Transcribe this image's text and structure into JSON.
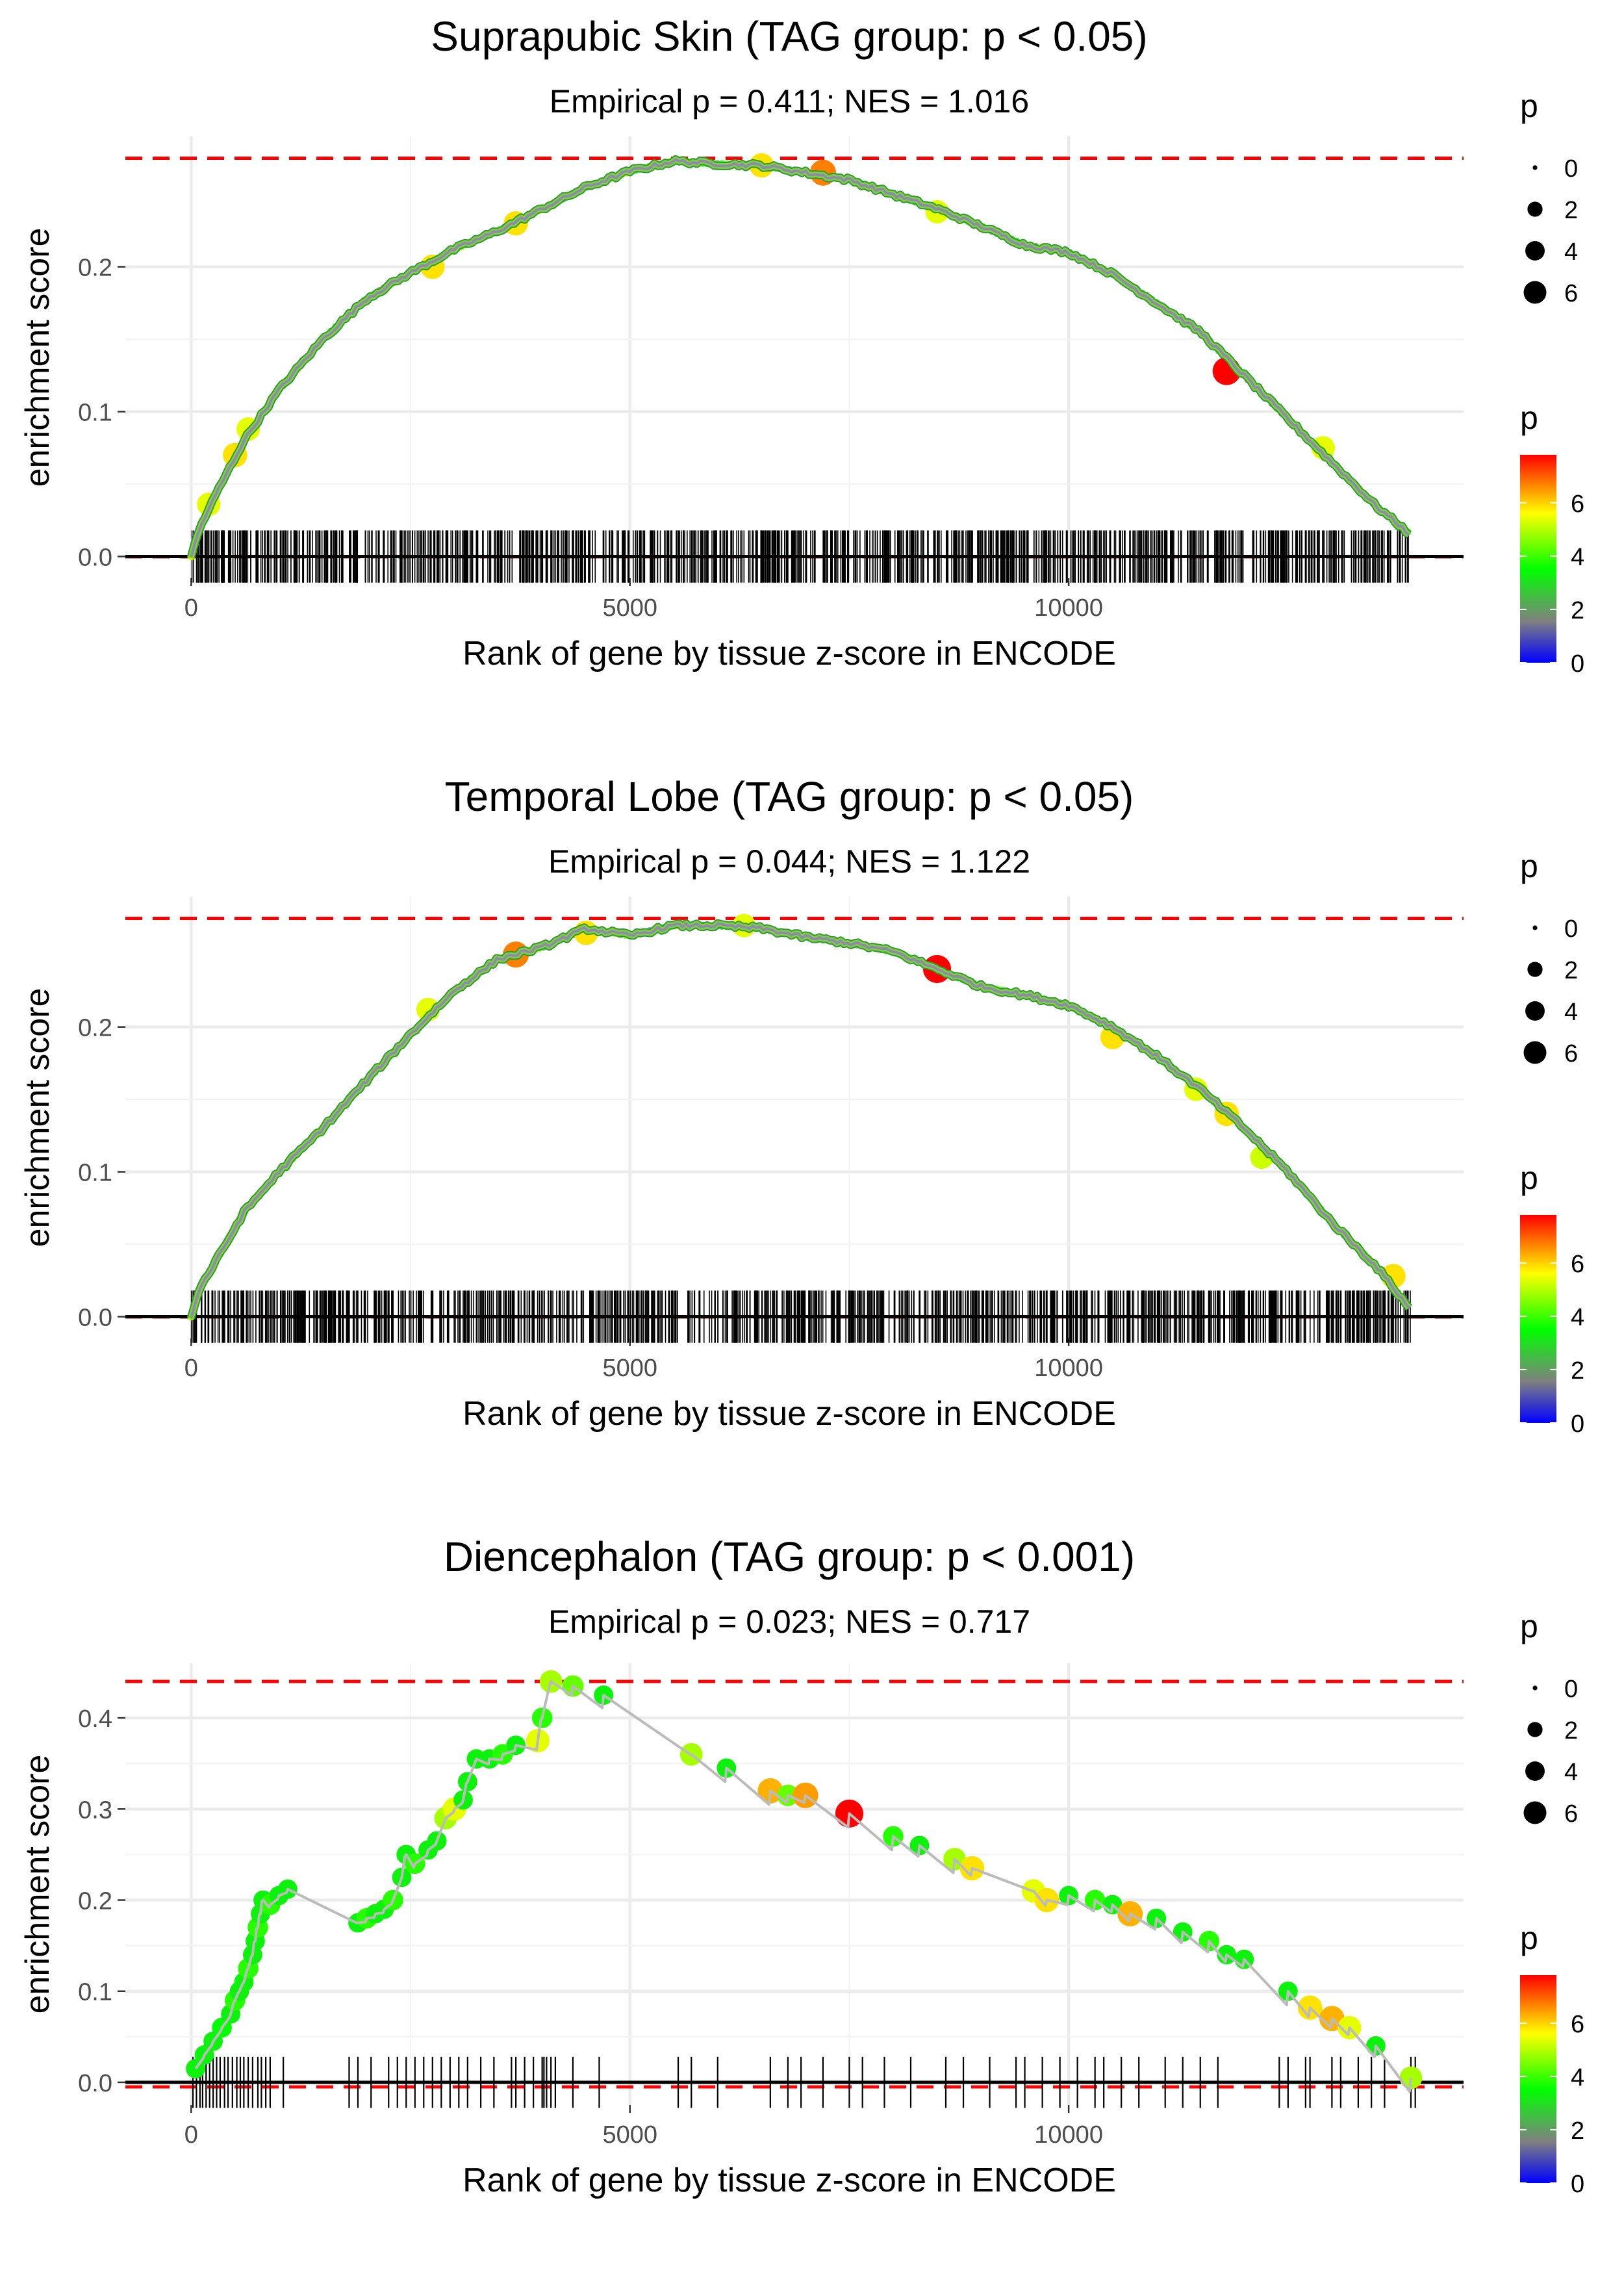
{
  "colorbar_gradient": [
    "#0000ff",
    "#808080",
    "#00ff00",
    "#ffff00",
    "#ff0000"
  ],
  "threshold_color": "#ff0000",
  "path_color": "#bbbbbb",
  "panels": [
    {
      "title": "Suprapubic Skin (TAG group: p < 0.05)",
      "subtitle": "Empirical p = 0.411; NES = 1.016",
      "xlabel": "Rank of gene by tissue z-score in ENCODE",
      "ylabel": "enrichment score",
      "legend_size_title": "p",
      "legend_color_title": "p"
    },
    {
      "title": "Temporal Lobe (TAG group: p < 0.05)",
      "subtitle": "Empirical p = 0.044; NES = 1.122",
      "xlabel": "Rank of gene by tissue z-score in ENCODE",
      "ylabel": "enrichment score",
      "legend_size_title": "p",
      "legend_color_title": "p"
    },
    {
      "title": "Diencephalon (TAG group: p < 0.001)",
      "subtitle": "Empirical p = 0.023; NES = 0.717",
      "xlabel": "Rank of gene by tissue z-score in ENCODE",
      "ylabel": "enrichment score",
      "legend_size_title": "p",
      "legend_color_title": "p"
    }
  ],
  "chart_data": [
    {
      "type": "line",
      "title": "Suprapubic Skin (TAG group: p < 0.05)",
      "subtitle": "Empirical p = 0.411; NES = 1.016",
      "xlabel": "Rank of gene by tissue z-score in ENCODE",
      "ylabel": "enrichment score",
      "xlim": [
        -750,
        14500
      ],
      "ylim": [
        -0.015,
        0.29
      ],
      "xticks": [
        0,
        5000,
        10000
      ],
      "yticks": [
        0.0,
        0.1,
        0.2
      ],
      "ytick_labels": [
        "0.0",
        "0.1",
        "0.2"
      ],
      "xtick_labels": [
        "0",
        "5000",
        "10000"
      ],
      "max_es": 0.275,
      "min_es": 0.0,
      "rug_height": 0.018,
      "gene_count": 1000,
      "rug_range": [
        0,
        13900
      ],
      "curve": [
        [
          0,
          0
        ],
        [
          100,
          0.02
        ],
        [
          300,
          0.045
        ],
        [
          600,
          0.08
        ],
        [
          1000,
          0.115
        ],
        [
          1500,
          0.15
        ],
        [
          2000,
          0.178
        ],
        [
          2500,
          0.196
        ],
        [
          3000,
          0.212
        ],
        [
          3500,
          0.225
        ],
        [
          4000,
          0.24
        ],
        [
          4500,
          0.255
        ],
        [
          5000,
          0.266
        ],
        [
          5500,
          0.273
        ],
        [
          6000,
          0.271
        ],
        [
          6500,
          0.27
        ],
        [
          7000,
          0.265
        ],
        [
          7500,
          0.26
        ],
        [
          8000,
          0.25
        ],
        [
          8500,
          0.24
        ],
        [
          9000,
          0.228
        ],
        [
          9500,
          0.215
        ],
        [
          10000,
          0.21
        ],
        [
          10500,
          0.195
        ],
        [
          11000,
          0.175
        ],
        [
          11500,
          0.155
        ],
        [
          12000,
          0.125
        ],
        [
          12500,
          0.095
        ],
        [
          13000,
          0.065
        ],
        [
          13500,
          0.035
        ],
        [
          13900,
          0.015
        ]
      ],
      "highlights": [
        {
          "x": 200,
          "y": 0.036,
          "p": 5.0
        },
        {
          "x": 500,
          "y": 0.07,
          "p": 5.5
        },
        {
          "x": 650,
          "y": 0.088,
          "p": 5.0
        },
        {
          "x": 2750,
          "y": 0.2,
          "p": 5.5
        },
        {
          "x": 3700,
          "y": 0.23,
          "p": 5.5
        },
        {
          "x": 6500,
          "y": 0.27,
          "p": 5.5
        },
        {
          "x": 7200,
          "y": 0.265,
          "p": 6.5
        },
        {
          "x": 8500,
          "y": 0.238,
          "p": 5.0
        },
        {
          "x": 11800,
          "y": 0.128,
          "p": 7.8
        },
        {
          "x": 12900,
          "y": 0.075,
          "p": 5.0
        }
      ],
      "p_legend": {
        "size_breaks": [
          0,
          2,
          4,
          6
        ],
        "color_breaks": [
          0,
          2,
          4,
          6
        ],
        "color_range": [
          0,
          7.8
        ]
      }
    },
    {
      "type": "line",
      "title": "Temporal Lobe (TAG group: p < 0.05)",
      "subtitle": "Empirical p = 0.044; NES = 1.122",
      "xlabel": "Rank of gene by tissue z-score in ENCODE",
      "ylabel": "enrichment score",
      "xlim": [
        -750,
        14500
      ],
      "ylim": [
        -0.015,
        0.29
      ],
      "xticks": [
        0,
        5000,
        10000
      ],
      "yticks": [
        0.0,
        0.1,
        0.2
      ],
      "ytick_labels": [
        "0.0",
        "0.1",
        "0.2"
      ],
      "xtick_labels": [
        "0",
        "5000",
        "10000"
      ],
      "max_es": 0.275,
      "min_es": 0.0,
      "rug_height": 0.018,
      "gene_count": 1000,
      "rug_range": [
        0,
        13900
      ],
      "curve": [
        [
          0,
          0
        ],
        [
          100,
          0.02
        ],
        [
          300,
          0.04
        ],
        [
          600,
          0.072
        ],
        [
          1000,
          0.1
        ],
        [
          1500,
          0.13
        ],
        [
          2000,
          0.163
        ],
        [
          2500,
          0.195
        ],
        [
          3000,
          0.225
        ],
        [
          3500,
          0.247
        ],
        [
          4000,
          0.255
        ],
        [
          4500,
          0.268
        ],
        [
          5000,
          0.263
        ],
        [
          5500,
          0.27
        ],
        [
          6000,
          0.27
        ],
        [
          6500,
          0.268
        ],
        [
          7000,
          0.262
        ],
        [
          7500,
          0.258
        ],
        [
          8000,
          0.252
        ],
        [
          8500,
          0.24
        ],
        [
          9000,
          0.228
        ],
        [
          9500,
          0.222
        ],
        [
          10000,
          0.215
        ],
        [
          10500,
          0.2
        ],
        [
          11000,
          0.18
        ],
        [
          11500,
          0.157
        ],
        [
          12000,
          0.13
        ],
        [
          12500,
          0.1
        ],
        [
          13000,
          0.065
        ],
        [
          13500,
          0.035
        ],
        [
          13900,
          0.005
        ]
      ],
      "highlights": [
        {
          "x": 2700,
          "y": 0.212,
          "p": 5.0
        },
        {
          "x": 3700,
          "y": 0.25,
          "p": 6.5
        },
        {
          "x": 4500,
          "y": 0.265,
          "p": 5.5
        },
        {
          "x": 6300,
          "y": 0.27,
          "p": 5.0
        },
        {
          "x": 8500,
          "y": 0.24,
          "p": 7.8
        },
        {
          "x": 10500,
          "y": 0.193,
          "p": 5.5
        },
        {
          "x": 11450,
          "y": 0.157,
          "p": 5.0
        },
        {
          "x": 11800,
          "y": 0.14,
          "p": 5.5
        },
        {
          "x": 12200,
          "y": 0.11,
          "p": 4.8
        },
        {
          "x": 13700,
          "y": 0.028,
          "p": 5.5
        }
      ],
      "p_legend": {
        "size_breaks": [
          0,
          2,
          4,
          6
        ],
        "color_breaks": [
          0,
          2,
          4,
          6
        ],
        "color_range": [
          0,
          7.8
        ]
      }
    },
    {
      "type": "line",
      "title": "Diencephalon (TAG group: p < 0.001)",
      "subtitle": "Empirical p = 0.023; NES = 0.717",
      "xlabel": "Rank of gene by tissue z-score in ENCODE",
      "ylabel": "enrichment score",
      "xlim": [
        -750,
        14500
      ],
      "ylim": [
        -0.025,
        0.46
      ],
      "xticks": [
        0,
        5000,
        10000
      ],
      "yticks": [
        0.0,
        0.1,
        0.2,
        0.3,
        0.4
      ],
      "ytick_labels": [
        "0.0",
        "0.1",
        "0.2",
        "0.3",
        "0.4"
      ],
      "xtick_labels": [
        "0",
        "5000",
        "10000"
      ],
      "max_es": 0.44,
      "min_es": -0.005,
      "rug_height": 0.028,
      "points": [
        {
          "x": 50,
          "y": 0.015,
          "p": 3.0
        },
        {
          "x": 150,
          "y": 0.03,
          "p": 3.0
        },
        {
          "x": 250,
          "y": 0.045,
          "p": 3.0
        },
        {
          "x": 350,
          "y": 0.06,
          "p": 3.2
        },
        {
          "x": 450,
          "y": 0.075,
          "p": 3.0
        },
        {
          "x": 500,
          "y": 0.09,
          "p": 3.5
        },
        {
          "x": 550,
          "y": 0.1,
          "p": 3.0
        },
        {
          "x": 600,
          "y": 0.11,
          "p": 3.0
        },
        {
          "x": 650,
          "y": 0.125,
          "p": 3.5
        },
        {
          "x": 700,
          "y": 0.14,
          "p": 3.0
        },
        {
          "x": 730,
          "y": 0.155,
          "p": 3.0
        },
        {
          "x": 760,
          "y": 0.17,
          "p": 3.5
        },
        {
          "x": 790,
          "y": 0.185,
          "p": 3.0
        },
        {
          "x": 820,
          "y": 0.2,
          "p": 3.0
        },
        {
          "x": 900,
          "y": 0.195,
          "p": 3.5
        },
        {
          "x": 1000,
          "y": 0.205,
          "p": 3.0
        },
        {
          "x": 1100,
          "y": 0.212,
          "p": 3.0
        },
        {
          "x": 1900,
          "y": 0.175,
          "p": 3.0
        },
        {
          "x": 2000,
          "y": 0.18,
          "p": 3.5
        },
        {
          "x": 2100,
          "y": 0.185,
          "p": 3.0
        },
        {
          "x": 2200,
          "y": 0.19,
          "p": 3.0
        },
        {
          "x": 2300,
          "y": 0.2,
          "p": 3.5
        },
        {
          "x": 2400,
          "y": 0.225,
          "p": 3.0
        },
        {
          "x": 2450,
          "y": 0.25,
          "p": 3.0
        },
        {
          "x": 2550,
          "y": 0.24,
          "p": 3.5
        },
        {
          "x": 2700,
          "y": 0.255,
          "p": 3.0
        },
        {
          "x": 2800,
          "y": 0.265,
          "p": 3.0
        },
        {
          "x": 2900,
          "y": 0.29,
          "p": 4.5
        },
        {
          "x": 3000,
          "y": 0.3,
          "p": 5.0
        },
        {
          "x": 3100,
          "y": 0.31,
          "p": 3.0
        },
        {
          "x": 3150,
          "y": 0.33,
          "p": 3.0
        },
        {
          "x": 3250,
          "y": 0.355,
          "p": 3.0
        },
        {
          "x": 3400,
          "y": 0.355,
          "p": 3.0
        },
        {
          "x": 3550,
          "y": 0.36,
          "p": 3.5
        },
        {
          "x": 3700,
          "y": 0.37,
          "p": 3.0
        },
        {
          "x": 3950,
          "y": 0.375,
          "p": 5.0
        },
        {
          "x": 4000,
          "y": 0.4,
          "p": 3.5
        },
        {
          "x": 4100,
          "y": 0.44,
          "p": 4.5
        },
        {
          "x": 4350,
          "y": 0.435,
          "p": 4.0
        },
        {
          "x": 4700,
          "y": 0.425,
          "p": 3.0
        },
        {
          "x": 5700,
          "y": 0.36,
          "p": 4.5
        },
        {
          "x": 6100,
          "y": 0.345,
          "p": 3.0
        },
        {
          "x": 6600,
          "y": 0.32,
          "p": 6.0
        },
        {
          "x": 6800,
          "y": 0.315,
          "p": 4.0
        },
        {
          "x": 7000,
          "y": 0.315,
          "p": 6.2
        },
        {
          "x": 7500,
          "y": 0.295,
          "p": 7.8
        },
        {
          "x": 8000,
          "y": 0.27,
          "p": 3.5
        },
        {
          "x": 8300,
          "y": 0.26,
          "p": 3.0
        },
        {
          "x": 8700,
          "y": 0.245,
          "p": 4.5
        },
        {
          "x": 8900,
          "y": 0.235,
          "p": 5.5
        },
        {
          "x": 9600,
          "y": 0.21,
          "p": 5.0
        },
        {
          "x": 9750,
          "y": 0.2,
          "p": 5.5
        },
        {
          "x": 10000,
          "y": 0.205,
          "p": 3.0
        },
        {
          "x": 10300,
          "y": 0.2,
          "p": 3.5
        },
        {
          "x": 10500,
          "y": 0.195,
          "p": 3.0
        },
        {
          "x": 10700,
          "y": 0.185,
          "p": 6.0
        },
        {
          "x": 11000,
          "y": 0.18,
          "p": 3.0
        },
        {
          "x": 11300,
          "y": 0.165,
          "p": 3.0
        },
        {
          "x": 11600,
          "y": 0.155,
          "p": 3.5
        },
        {
          "x": 11800,
          "y": 0.14,
          "p": 3.0
        },
        {
          "x": 12000,
          "y": 0.135,
          "p": 3.0
        },
        {
          "x": 12500,
          "y": 0.1,
          "p": 3.0
        },
        {
          "x": 12750,
          "y": 0.082,
          "p": 5.5
        },
        {
          "x": 13000,
          "y": 0.07,
          "p": 6.0
        },
        {
          "x": 13200,
          "y": 0.06,
          "p": 5.0
        },
        {
          "x": 13500,
          "y": 0.04,
          "p": 3.0
        },
        {
          "x": 13900,
          "y": 0.005,
          "p": 4.5
        }
      ],
      "rug": [
        20,
        60,
        100,
        130,
        170,
        210,
        250,
        290,
        330,
        380,
        420,
        470,
        520,
        560,
        600,
        650,
        700,
        760,
        800,
        850,
        900,
        1050,
        1800,
        1900,
        2050,
        2250,
        2350,
        2450,
        2550,
        2650,
        2750,
        2850,
        2950,
        3050,
        3150,
        3300,
        3450,
        3650,
        3700,
        3800,
        3900,
        4000,
        4020,
        4050,
        4100,
        4150,
        4350,
        4650,
        5550,
        5700,
        6000,
        6600,
        6800,
        6950,
        7200,
        7500,
        7650,
        7900,
        8200,
        8600,
        8800,
        9100,
        9400,
        9500,
        9700,
        9900,
        10100,
        10300,
        10400,
        10600,
        10800,
        11100,
        11300,
        11500,
        11700,
        12400,
        12500,
        12700,
        12750,
        13000,
        13100,
        13300,
        13450,
        13600,
        13900,
        13950
      ],
      "p_legend": {
        "size_breaks": [
          0,
          2,
          4,
          6
        ],
        "color_breaks": [
          0,
          2,
          4,
          6
        ],
        "color_range": [
          0,
          7.8
        ]
      }
    }
  ]
}
